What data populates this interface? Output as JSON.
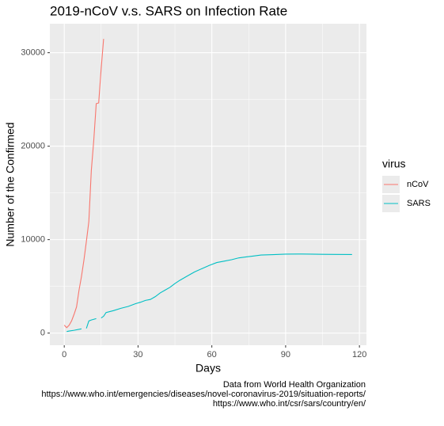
{
  "chart_data": {
    "type": "line",
    "title": "2019-nCoV v.s. SARS on Infection Rate",
    "x_label": "Days",
    "y_label": "Number of the Confirmed",
    "legend_title": "virus",
    "legend_position": "right",
    "caption": [
      "Data from World Health Organization",
      "https://www.who.int/emergencies/diseases/novel-coronavirus-2019/situation-reports/",
      "https://www.who.int/csr/sars/country/en/"
    ],
    "xlim": [
      -5.85,
      122.85
    ],
    "ylim": [
      -1300,
      33100
    ],
    "xticks": [
      0,
      30,
      60,
      90,
      120
    ],
    "yticks": [
      0,
      10000,
      20000,
      30000
    ],
    "grid": true,
    "series": [
      {
        "name": "nCoV",
        "color": "#F8766D",
        "x": [
          0,
          1,
          2,
          3,
          4,
          5,
          6,
          7,
          8,
          9,
          10,
          11,
          12,
          13,
          14,
          15,
          16
        ],
        "values": [
          850,
          580,
          845,
          1317,
          2015,
          2800,
          4581,
          6058,
          7813,
          9821,
          11948,
          17389,
          20628,
          24553,
          24630,
          28276,
          31481
        ]
      },
      {
        "name": "SARS",
        "color": "#00BFC4",
        "x": [
          1,
          2,
          4,
          7,
          8,
          9,
          10,
          11,
          13,
          14,
          15,
          16,
          17,
          20,
          23,
          26,
          29,
          31,
          33,
          35,
          37,
          39,
          41,
          43,
          45,
          47,
          50,
          53,
          56,
          59,
          62,
          65,
          68,
          71,
          74,
          77,
          80,
          85,
          90,
          95,
          100,
          105,
          110,
          117
        ],
        "values": [
          167,
          220,
          300,
          450,
          null,
          500,
          1300,
          1400,
          1550,
          null,
          1620,
          1800,
          2200,
          2400,
          2650,
          2850,
          3150,
          3300,
          3500,
          3600,
          3900,
          4300,
          4600,
          4900,
          5300,
          5650,
          6100,
          6550,
          6900,
          7250,
          7550,
          7700,
          7850,
          8050,
          8150,
          8250,
          8350,
          8400,
          8450,
          8460,
          8450,
          8430,
          8420,
          8410
        ]
      }
    ]
  }
}
